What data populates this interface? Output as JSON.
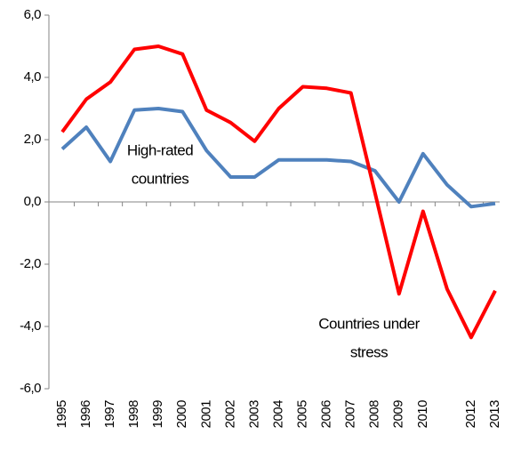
{
  "chart_data": {
    "type": "line",
    "categories": [
      "1995",
      "1996",
      "1997",
      "1998",
      "1999",
      "2000",
      "2001",
      "2002",
      "2003",
      "2004",
      "2005",
      "2006",
      "2007",
      "2008",
      "2009",
      "2010",
      null,
      "2012",
      "2013"
    ],
    "series": [
      {
        "label_lines": [
          "High-rated",
          "countries"
        ],
        "color": "#4f81bd",
        "values": [
          1.7,
          2.4,
          1.3,
          2.95,
          3.0,
          2.9,
          1.65,
          0.8,
          0.8,
          1.35,
          1.35,
          1.35,
          1.3,
          1.0,
          0.0,
          1.55,
          0.55,
          -0.15,
          -0.05
        ]
      },
      {
        "label_lines": [
          "Countries under",
          "stress"
        ],
        "color": "#ff0000",
        "values": [
          2.25,
          3.3,
          3.85,
          4.9,
          5.0,
          4.75,
          2.95,
          2.55,
          1.95,
          3.0,
          3.7,
          3.65,
          3.5,
          0.3,
          -2.95,
          -0.3,
          -2.8,
          -4.35,
          -2.85
        ]
      }
    ],
    "ylim": [
      -6,
      6
    ],
    "yticks": [
      {
        "value": -6,
        "label": "-6,0"
      },
      {
        "value": -4,
        "label": "-4,0"
      },
      {
        "value": -2,
        "label": "-2,0"
      },
      {
        "value": 0,
        "label": "0,0"
      },
      {
        "value": 2,
        "label": "2,0"
      },
      {
        "value": 4,
        "label": "4,0"
      },
      {
        "value": 6,
        "label": "6,0"
      }
    ],
    "grid": false
  }
}
